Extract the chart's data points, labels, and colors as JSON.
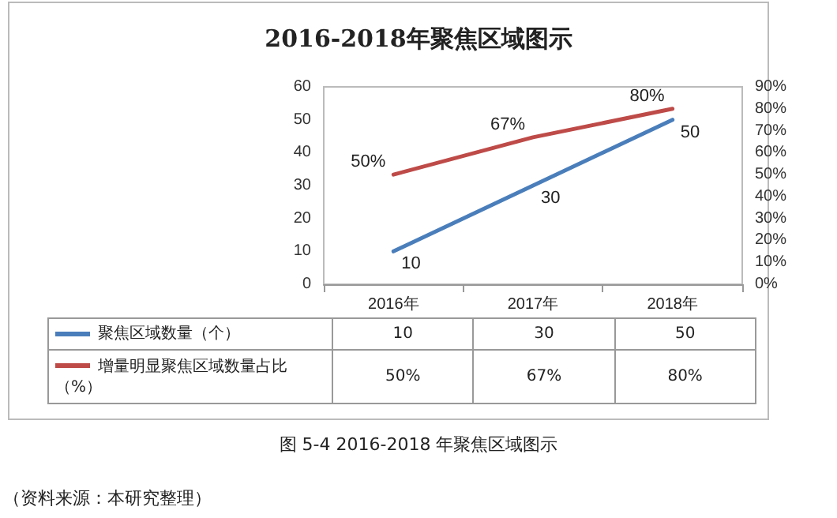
{
  "chart_data": {
    "type": "line",
    "title": "2016-2018年聚焦区域图示",
    "categories": [
      "2016年",
      "2017年",
      "2018年"
    ],
    "series": [
      {
        "name": "聚焦区域数量（个）",
        "color": "#4a7ebb",
        "values": [
          10,
          30,
          50
        ],
        "value_labels": [
          "10",
          "30",
          "50"
        ]
      },
      {
        "name": "增量明显聚焦区域数量占比（%）",
        "color": "#be4b48",
        "values": [
          50,
          67,
          80
        ],
        "value_labels": [
          "50%",
          "67%",
          "80%"
        ],
        "axis": "y2"
      }
    ],
    "ylim": [
      0,
      60
    ],
    "yticks": [
      0,
      10,
      20,
      30,
      40,
      50,
      60
    ],
    "y2lim": [
      0,
      90
    ],
    "y2ticks": [
      {
        "value": 0,
        "label": "0%"
      },
      {
        "value": 10,
        "label": "10%"
      },
      {
        "value": 20,
        "label": "20%"
      },
      {
        "value": 30,
        "label": "30%"
      },
      {
        "value": 40,
        "label": "40%"
      },
      {
        "value": 50,
        "label": "50%"
      },
      {
        "value": 60,
        "label": "60%"
      },
      {
        "value": 70,
        "label": "70%"
      },
      {
        "value": 80,
        "label": "80%"
      },
      {
        "value": 90,
        "label": "90%"
      }
    ],
    "grid": false,
    "legend": "bottom",
    "marker": "none",
    "line_style": "solid",
    "annotations": [
      "图 5-4 2016-2018 年聚焦区域图示",
      "（资料来源：本研究整理）"
    ]
  }
}
